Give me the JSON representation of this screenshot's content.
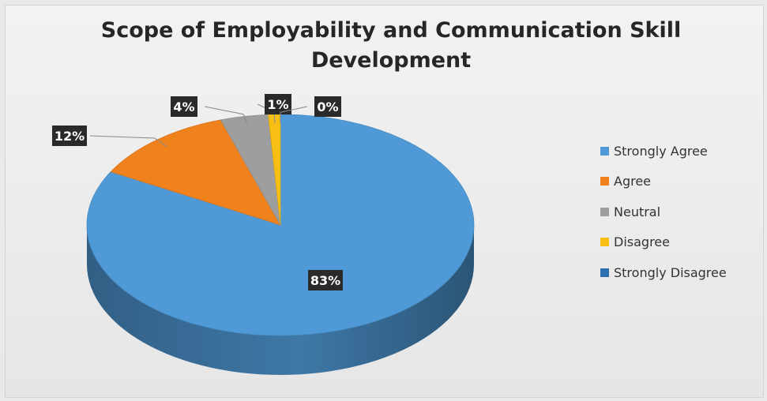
{
  "chart_data": {
    "type": "pie",
    "title_lines": [
      "Scope of Employability and Communication Skill",
      "Development"
    ],
    "slices": [
      {
        "name": "Strongly Agree",
        "value": 83,
        "label": "83%",
        "color": "#4f9ad6"
      },
      {
        "name": "Agree",
        "value": 12,
        "label": "12%",
        "color": "#f0821e"
      },
      {
        "name": "Neutral",
        "value": 4,
        "label": "4%",
        "color": "#9e9e9e"
      },
      {
        "name": "Disagree",
        "value": 1,
        "label": "1%",
        "color": "#f7be14"
      },
      {
        "name": "Strongly Disagree",
        "value": 0,
        "label": "0%",
        "color": "#2e6fb0"
      }
    ],
    "legend_position": "right"
  }
}
